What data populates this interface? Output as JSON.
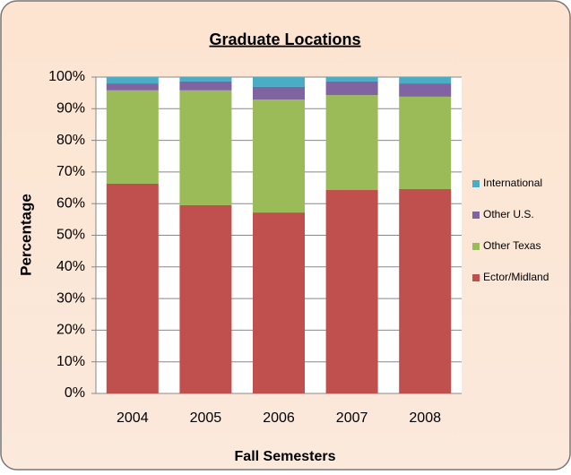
{
  "chart_data": {
    "type": "bar",
    "stacked": true,
    "title": "Graduate Locations",
    "xlabel": "Fall Semesters",
    "ylabel": "Percentage",
    "categories": [
      "2004",
      "2005",
      "2006",
      "2007",
      "2008"
    ],
    "series": [
      {
        "name": "Ector/Midland",
        "color": "#c0504d",
        "values": [
          66.3,
          59.5,
          57.2,
          64.3,
          64.6
        ]
      },
      {
        "name": "Other Texas",
        "color": "#9bbb59",
        "values": [
          29.5,
          36.3,
          35.7,
          30.0,
          29.2
        ]
      },
      {
        "name": "Other U.S.",
        "color": "#8064a2",
        "values": [
          2.2,
          2.8,
          4.0,
          4.3,
          4.2
        ]
      },
      {
        "name": "International",
        "color": "#4bacc6",
        "values": [
          2.0,
          1.4,
          3.1,
          1.4,
          2.0
        ]
      }
    ],
    "ylim": [
      0,
      100
    ],
    "yticks": [
      {
        "value": 0,
        "label": "0%"
      },
      {
        "value": 10,
        "label": "10%"
      },
      {
        "value": 20,
        "label": "20%"
      },
      {
        "value": 30,
        "label": "30%"
      },
      {
        "value": 40,
        "label": "40%"
      },
      {
        "value": 50,
        "label": "50%"
      },
      {
        "value": 60,
        "label": "60%"
      },
      {
        "value": 70,
        "label": "70%"
      },
      {
        "value": 80,
        "label": "80%"
      },
      {
        "value": 90,
        "label": "90%"
      },
      {
        "value": 100,
        "label": "100%"
      }
    ],
    "grid": true,
    "legend": "right"
  }
}
